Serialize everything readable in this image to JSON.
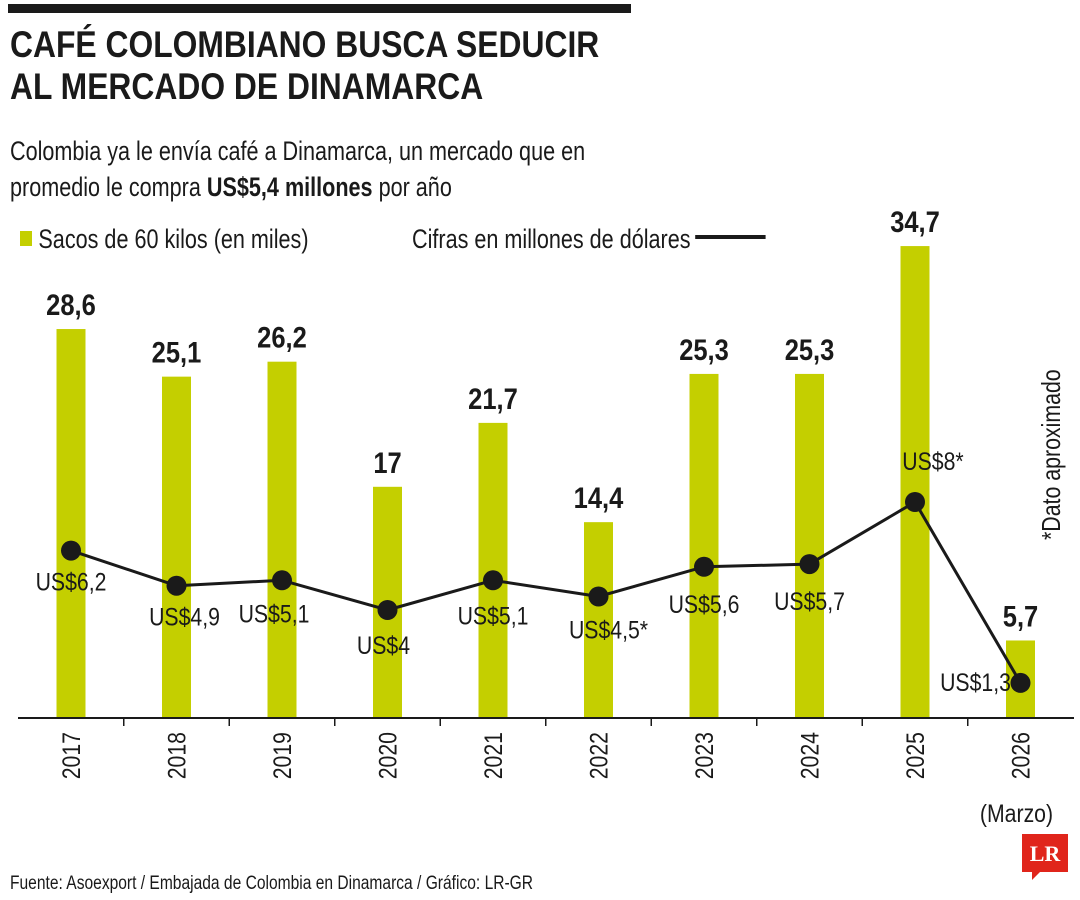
{
  "header": {
    "title_line1": "CAFÉ COLOMBIANO BUSCA SEDUCIR",
    "title_line2": "AL MERCADO DE DINAMARCA",
    "subtitle_line1": "Colombia ya le envía café a Dinamarca, un mercado que en",
    "subtitle_line2_pre": "promedio le compra ",
    "subtitle_line2_bold": "US$5,4 millones",
    "subtitle_line2_post": " por año"
  },
  "legend": {
    "bars_label": "Sacos de 60 kilos (en miles)",
    "line_label": "Cifras en millones de dólares"
  },
  "note": "*Dato aproximado",
  "source": "Fuente: Asoexport / Embajada de Colombia en Dinamarca / Gráfico: LR-GR",
  "logo_text": "LR",
  "colors": {
    "bar": "#c4cf00",
    "line": "#1a1a1a",
    "text": "#1a1a1a",
    "logo": "#e0251b"
  },
  "chart_data": {
    "type": "bar",
    "categories": [
      "2017",
      "2018",
      "2019",
      "2020",
      "2021",
      "2022",
      "2023",
      "2024",
      "2025",
      "2026"
    ],
    "category_notes": [
      "",
      "",
      "",
      "",
      "",
      "",
      "",
      "",
      "",
      "(Marzo)"
    ],
    "series": [
      {
        "name": "Sacos de 60 kilos (en miles)",
        "type": "bar",
        "values": [
          28.6,
          25.1,
          26.2,
          17,
          21.7,
          14.4,
          25.3,
          25.3,
          34.7,
          5.7
        ],
        "labels": [
          "28,6",
          "25,1",
          "26,2",
          "17",
          "21,7",
          "14,4",
          "25,3",
          "25,3",
          "34,7",
          "5,7"
        ]
      },
      {
        "name": "Cifras en millones de dólares",
        "type": "line",
        "values": [
          6.2,
          4.9,
          5.1,
          4,
          5.1,
          4.5,
          5.6,
          5.7,
          8,
          1.3
        ],
        "labels": [
          "US$6,2",
          "US$4,9",
          "US$5,1",
          "US$4",
          "US$5,1",
          "US$4,5*",
          "US$5,6",
          "US$5,7",
          "US$8*",
          "US$1,3"
        ],
        "approximate": [
          false,
          false,
          false,
          false,
          false,
          true,
          false,
          false,
          true,
          false
        ]
      }
    ],
    "title": "CAFÉ COLOMBIANO BUSCA SEDUCIR AL MERCADO DE DINAMARCA",
    "xlabel": "",
    "ylabel": ""
  }
}
